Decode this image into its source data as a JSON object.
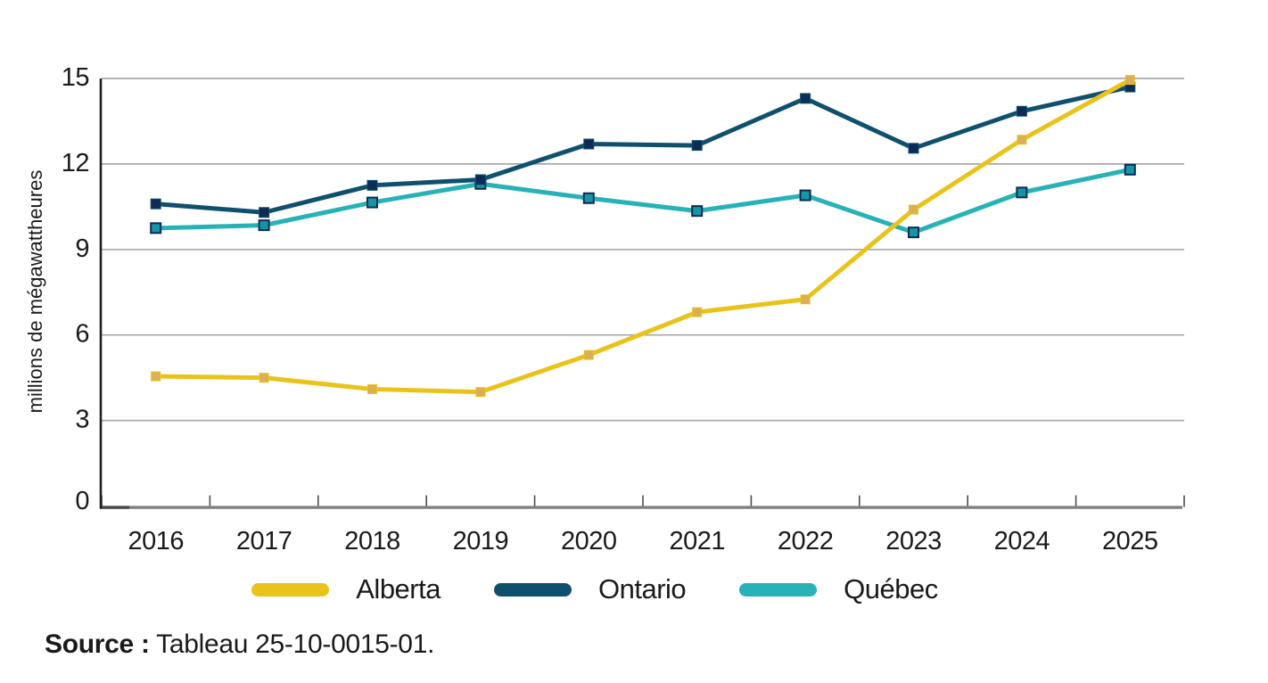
{
  "chart_data": {
    "type": "line",
    "title": "",
    "xlabel": "",
    "ylabel": "millions de mégawattheures",
    "ylim": [
      0,
      15
    ],
    "yticks": [
      0,
      3,
      6,
      9,
      12,
      15
    ],
    "grid": "horizontal",
    "legend_position": "bottom",
    "categories": [
      "2016",
      "2017",
      "2018",
      "2019",
      "2020",
      "2021",
      "2022",
      "2023",
      "2024",
      "2025"
    ],
    "series": [
      {
        "name": "Alberta",
        "color": "#E9C319",
        "marker_color": "#DCAE55",
        "marker_border": "#E9C319",
        "values": [
          4.55,
          4.5,
          4.1,
          4.0,
          5.3,
          6.8,
          7.25,
          10.4,
          12.85,
          14.95
        ]
      },
      {
        "name": "Ontario",
        "color": "#10506F",
        "marker_color": "#0C2B55",
        "marker_border": "#10506F",
        "values": [
          10.6,
          10.3,
          11.25,
          11.45,
          12.7,
          12.65,
          14.3,
          12.55,
          13.85,
          14.7
        ]
      },
      {
        "name": "Québec",
        "color": "#27B2B8",
        "marker_color": "#1496A4",
        "marker_border": "#0C2B55",
        "values": [
          9.75,
          9.85,
          10.65,
          11.3,
          10.8,
          10.35,
          10.9,
          9.6,
          11.0,
          11.8
        ]
      }
    ],
    "axis_colors": {
      "gridline": "#A9A9A9",
      "x_axis": "#7F7F7F",
      "x_axis_dark_segment": "#4A4A4A",
      "y_axis": "#1F1F1F",
      "tick": "#4D4D4D",
      "text": "#1A1A1A"
    }
  },
  "source": {
    "label": "Source :",
    "text": "Tableau 25-10-0015-01."
  }
}
